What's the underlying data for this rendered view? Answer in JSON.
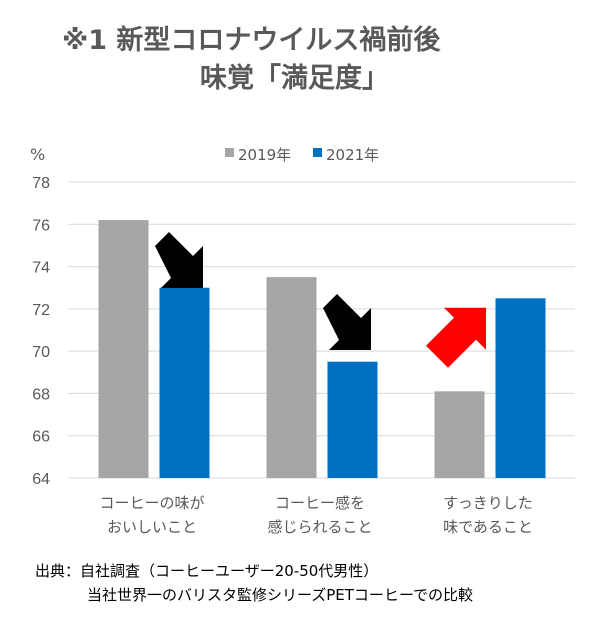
{
  "header": {
    "title_line1": "※1 新型コロナウイルス禍前後",
    "title_line2": "味覚「満足度」"
  },
  "chart_data": {
    "type": "bar",
    "ylabel": "%",
    "ylim": [
      64,
      78
    ],
    "yticks": [
      64,
      66,
      68,
      70,
      72,
      74,
      76,
      78
    ],
    "grid": true,
    "legend_position": "top",
    "categories": [
      [
        "コーヒーの味が",
        "おいしいこと"
      ],
      [
        "コーヒー感を",
        "感じられること"
      ],
      [
        "すっきりした",
        "味であること"
      ]
    ],
    "series": [
      {
        "name": "2019年",
        "color": "#a6a6a6",
        "values": [
          76.2,
          73.5,
          68.1
        ]
      },
      {
        "name": "2021年",
        "color": "#0070c0",
        "values": [
          73.0,
          69.5,
          72.5
        ]
      }
    ],
    "annotations": [
      {
        "type": "arrow",
        "direction": "down",
        "color": "#000000",
        "category": 0
      },
      {
        "type": "arrow",
        "direction": "down",
        "color": "#000000",
        "category": 1
      },
      {
        "type": "arrow",
        "direction": "up",
        "color": "#ff0000",
        "category": 2
      }
    ]
  },
  "footer": {
    "line1": "出典：自社調査（コーヒーユーザー20-50代男性）",
    "line2": "当社世界一のバリスタ監修シリーズPETコーヒーでの比較"
  }
}
